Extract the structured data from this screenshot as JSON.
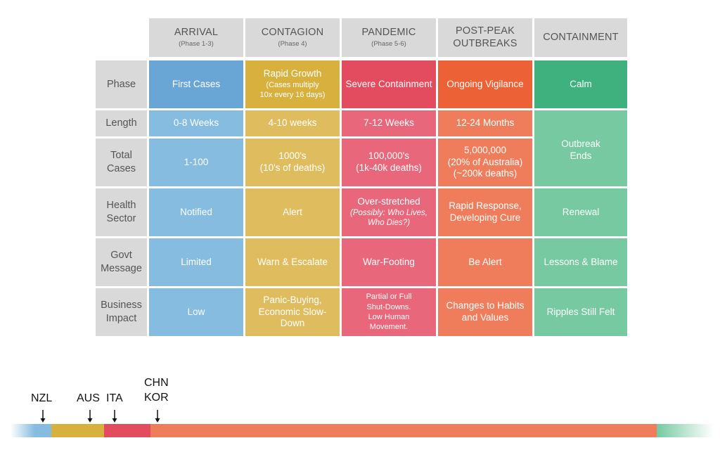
{
  "phases": [
    {
      "title": [
        "ARRIVAL"
      ],
      "sub": "(Phase 1-3)"
    },
    {
      "title": [
        "CONTAGION"
      ],
      "sub": "(Phase 4)"
    },
    {
      "title": [
        "PANDEMIC"
      ],
      "sub": "(Phase 5-6)"
    },
    {
      "title": [
        "POST-PEAK",
        "OUTBREAKS"
      ],
      "sub": ""
    },
    {
      "title": [
        "CONTAINMENT"
      ],
      "sub": ""
    }
  ],
  "row_labels": [
    [
      "Phase"
    ],
    [
      "Length"
    ],
    [
      "Total",
      "Cases"
    ],
    [
      "Health",
      "Sector"
    ],
    [
      "Govt",
      "Message"
    ],
    [
      "Business",
      "Impact"
    ]
  ],
  "cells": {
    "phase": [
      "First Cases",
      [
        "Rapid Growth",
        "(Cases multiply",
        "10x every 16 days)"
      ],
      "Severe Containment",
      "Ongoing Vigilance",
      "Calm"
    ],
    "length": [
      "0-8 Weeks",
      "4-10 weeks",
      "7-12 Weeks",
      "12-24 Months"
    ],
    "total_cases": [
      "1-100",
      [
        "1000's",
        "(10's of deaths)"
      ],
      [
        "100,000's",
        "(1k-40k deaths)"
      ],
      [
        "5,000,000",
        "(20% of Australia)",
        "(~200k deaths)"
      ]
    ],
    "containment_merged": [
      "Outbreak",
      "Ends"
    ],
    "health": [
      "Notified",
      "Alert",
      [
        "Over-stretched",
        "(Possibly: Who Lives,",
        "Who Dies?)"
      ],
      [
        "Rapid Response,",
        "Developing Cure"
      ],
      "Renewal"
    ],
    "govt": [
      "Limited",
      "Warn & Escalate",
      "War-Footing",
      "Be Alert",
      "Lessons & Blame"
    ],
    "business": [
      "Low",
      [
        "Panic-Buying,",
        "Economic Slow-",
        "Down"
      ],
      [
        "Partial or Full",
        "Shut-Downs.",
        "Low Human",
        "Movement."
      ],
      [
        "Changes to Habits",
        "and Values"
      ],
      "Ripples Still Felt"
    ]
  },
  "colors": {
    "arrival": [
      "#69a6d6",
      "#85bcdf"
    ],
    "contagion": [
      "#d8b03e",
      "#dfbd5e"
    ],
    "pandemic": [
      "#e34b5f",
      "#e8677a"
    ],
    "postpeak": [
      "#ec6236",
      "#ef7d5b"
    ],
    "containment": [
      "#3eb17e",
      "#76c9a1"
    ],
    "header_bg": "#d9d9d9"
  },
  "timeline": {
    "countries": [
      "NZL",
      "AUS",
      "ITA",
      "CHN",
      "KOR"
    ]
  }
}
